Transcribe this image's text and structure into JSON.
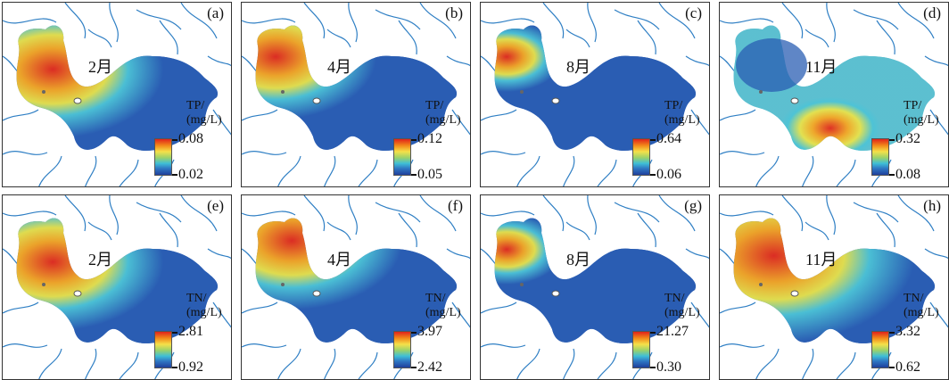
{
  "panels": [
    {
      "label": "(a)",
      "month": "2月",
      "param_line1": "TP/",
      "param_line2": "(mg/L)",
      "max": "0.08",
      "min": "0.02",
      "hot": "nw"
    },
    {
      "label": "(b)",
      "month": "4月",
      "param_line1": "TP/",
      "param_line2": "(mg/L)",
      "max": "0.12",
      "min": "0.05",
      "hot": "nw2"
    },
    {
      "label": "(c)",
      "month": "8月",
      "param_line1": "TP/",
      "param_line2": "(mg/L)",
      "max": "0.64",
      "min": "0.06",
      "hot": "nwsmall"
    },
    {
      "label": "(d)",
      "month": "11月",
      "param_line1": "TP/",
      "param_line2": "(mg/L)",
      "max": "0.32",
      "min": "0.08",
      "hot": "south"
    },
    {
      "label": "(e)",
      "month": "2月",
      "param_line1": "TN/",
      "param_line2": "(mg/L)",
      "max": "2.81",
      "min": "0.92",
      "hot": "nw"
    },
    {
      "label": "(f)",
      "month": "4月",
      "param_line1": "TN/",
      "param_line2": "(mg/L)",
      "max": "3.97",
      "min": "2.42",
      "hot": "nwtop"
    },
    {
      "label": "(g)",
      "month": "8月",
      "param_line1": "TN/",
      "param_line2": "(mg/L)",
      "max": "21.27",
      "min": "0.30",
      "hot": "nwsmall"
    },
    {
      "label": "(h)",
      "month": "11月",
      "param_line1": "TN/",
      "param_line2": "(mg/L)",
      "max": "3.32",
      "min": "0.62",
      "hot": "nwmix"
    }
  ],
  "colors": {
    "hot": "#e42a1c",
    "warm": "#f5a623",
    "mid": "#e8e24a",
    "cool": "#4cc3d6",
    "base": "#2a5db3",
    "river": "#2f7fc4"
  }
}
